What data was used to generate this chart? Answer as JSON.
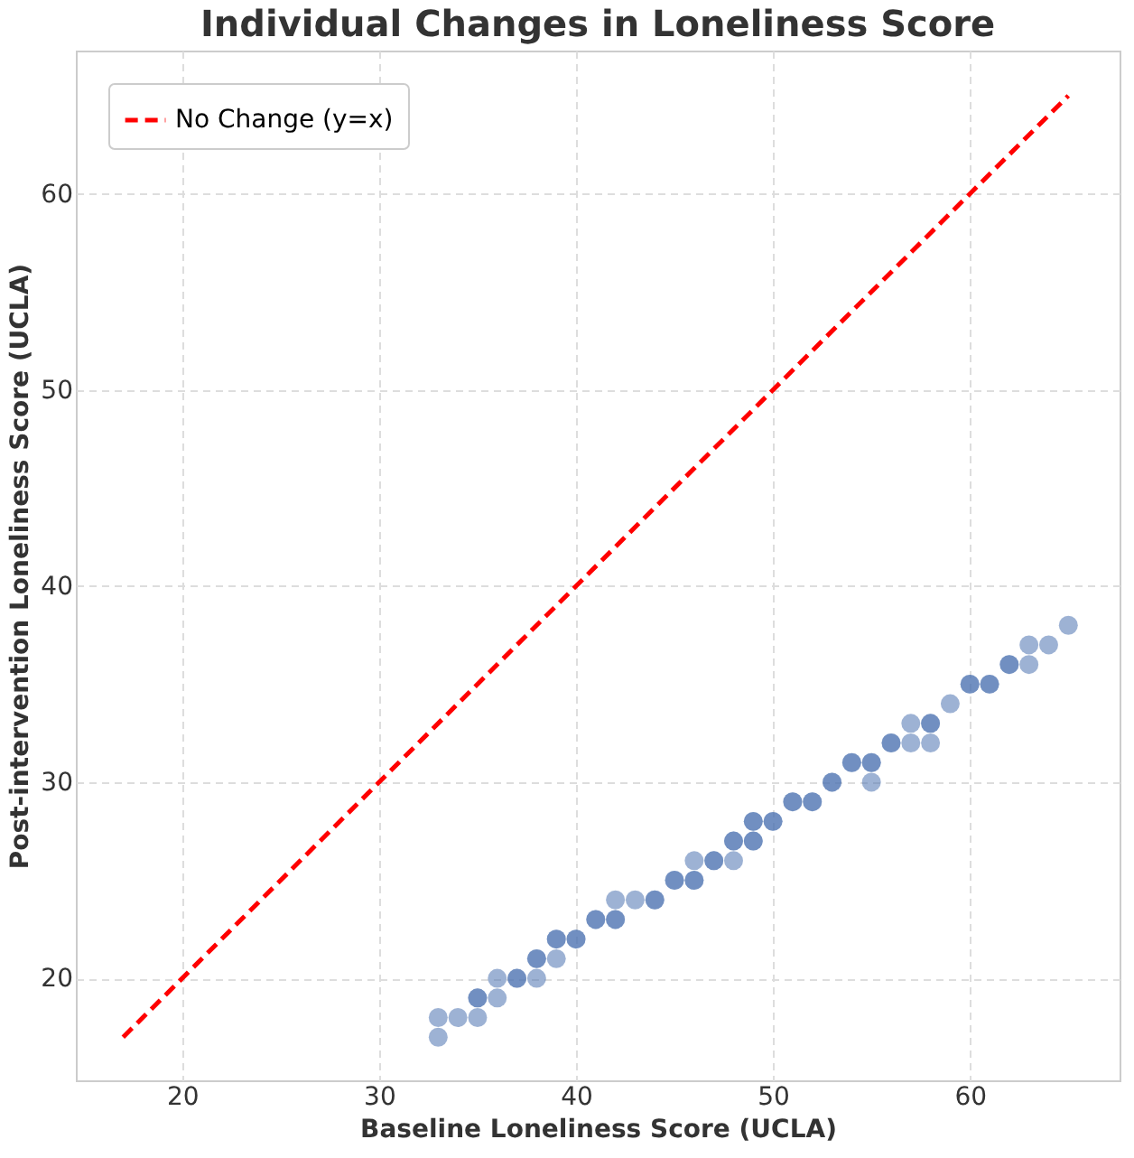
{
  "chart_data": {
    "type": "scatter",
    "title": "Individual Changes in Loneliness Score",
    "xlabel": "Baseline Loneliness Score (UCLA)",
    "ylabel": "Post-intervention Loneliness Score (UCLA)",
    "xlim": [
      14.6,
      67.6
    ],
    "ylim": [
      14.8,
      67.3
    ],
    "xticks": [
      20,
      30,
      40,
      50,
      60
    ],
    "yticks": [
      20,
      30,
      40,
      50,
      60
    ],
    "grid": true,
    "legend": "top left",
    "series": [
      {
        "color": "#4c72b0",
        "marker": "circle",
        "x": [
          33,
          33,
          34,
          35,
          35,
          35,
          36,
          36,
          37,
          37,
          38,
          38,
          38,
          39,
          39,
          39,
          40,
          40,
          41,
          41,
          42,
          42,
          42,
          43,
          44,
          44,
          45,
          45,
          46,
          46,
          46,
          47,
          47,
          48,
          48,
          48,
          49,
          49,
          49,
          49,
          50,
          50,
          51,
          51,
          52,
          52,
          53,
          53,
          54,
          54,
          55,
          55,
          55,
          56,
          56,
          57,
          57,
          58,
          58,
          58,
          59,
          60,
          60,
          61,
          61,
          62,
          62,
          63,
          63,
          64,
          65
        ],
        "values": [
          18,
          17,
          18,
          18,
          19,
          19,
          19,
          20,
          20,
          20,
          20,
          21,
          21,
          21,
          22,
          22,
          22,
          22,
          23,
          23,
          23,
          23,
          24,
          24,
          24,
          24,
          25,
          25,
          25,
          25,
          26,
          26,
          26,
          26,
          27,
          27,
          27,
          27,
          28,
          28,
          28,
          28,
          29,
          29,
          29,
          29,
          30,
          30,
          31,
          31,
          31,
          31,
          30,
          32,
          32,
          32,
          33,
          33,
          33,
          32,
          34,
          35,
          35,
          35,
          35,
          36,
          36,
          36,
          37,
          37,
          38
        ]
      },
      {
        "type": "line",
        "name": "No Change (y=x)",
        "color": "#ff0000",
        "line_style": "dashed",
        "marker": "none",
        "x": [
          17,
          65
        ],
        "values": [
          17,
          65
        ]
      }
    ]
  }
}
